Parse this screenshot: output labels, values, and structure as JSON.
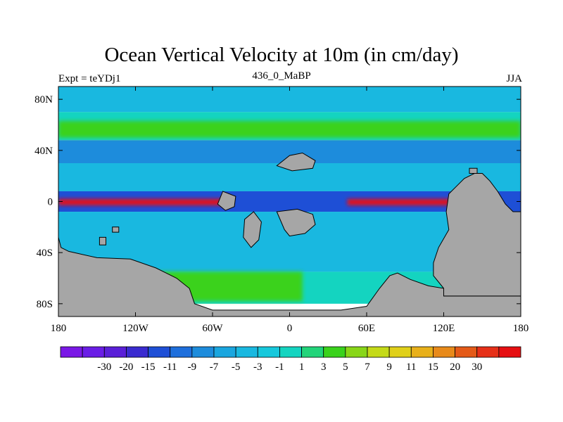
{
  "header": {
    "title": "Ocean Vertical Velocity at 10m (in cm/day)",
    "left_label": "Expt = teYDj1",
    "center_label": "436_0_MaBP",
    "right_label": "JJA"
  },
  "chart_data": {
    "type": "heatmap",
    "title": "Ocean Vertical Velocity at 10m (in cm/day)",
    "xlabel": "",
    "ylabel": "",
    "xlim": [
      -180,
      180
    ],
    "ylim": [
      -90,
      90
    ],
    "x_ticks": [
      {
        "value": -180,
        "label": "180"
      },
      {
        "value": -120,
        "label": "120W"
      },
      {
        "value": -60,
        "label": "60W"
      },
      {
        "value": 0,
        "label": "0"
      },
      {
        "value": 60,
        "label": "60E"
      },
      {
        "value": 120,
        "label": "120E"
      },
      {
        "value": 180,
        "label": "180"
      }
    ],
    "y_ticks": [
      {
        "value": 80,
        "label": "80N"
      },
      {
        "value": 40,
        "label": "40N"
      },
      {
        "value": 0,
        "label": "0"
      },
      {
        "value": -40,
        "label": "40S"
      },
      {
        "value": -80,
        "label": "80S"
      }
    ],
    "land_color": "#a6a6a6",
    "colorbar": {
      "colors": [
        "#7a18e6",
        "#6a1de6",
        "#5a1fd8",
        "#3a2bd0",
        "#1e4fd6",
        "#1e6fdc",
        "#1d8cdc",
        "#1aa6df",
        "#19b8e0",
        "#16c8dc",
        "#14d4c0",
        "#22d47a",
        "#3ad21c",
        "#88d618",
        "#c4da18",
        "#e0d019",
        "#e8b01a",
        "#e88a1a",
        "#e45a18",
        "#e63018",
        "#e60f12"
      ],
      "labels": [
        "-30",
        "-20",
        "-15",
        "-11",
        "-9",
        "-7",
        "-5",
        "-3",
        "-1",
        "1",
        "3",
        "5",
        "7",
        "9",
        "11",
        "15",
        "20",
        "30"
      ]
    },
    "background_field": [
      {
        "lat_range": [
          90,
          70
        ],
        "color": "#19b8e0"
      },
      {
        "lat_range": [
          70,
          48
        ],
        "color": "#14d4c0"
      },
      {
        "lat_range": [
          48,
          30
        ],
        "color": "#1d8cdc"
      },
      {
        "lat_range": [
          30,
          8
        ],
        "color": "#19b8e0"
      },
      {
        "lat_range": [
          8,
          -8
        ],
        "color": "#1e4fd6"
      },
      {
        "lat_range": [
          -8,
          -55
        ],
        "color": "#19b8e0"
      },
      {
        "lat_range": [
          -55,
          -80
        ],
        "color": "#14d4c0"
      }
    ],
    "field_features": [
      {
        "name": "northern-green-band",
        "lon_range": [
          -180,
          180
        ],
        "lat_range": [
          63,
          50
        ],
        "color": "#3ad21c"
      },
      {
        "name": "equatorial-pacific-upwelling",
        "lon_range": [
          -180,
          -50
        ],
        "lat_range": [
          2,
          -3
        ],
        "color": "#e60f12"
      },
      {
        "name": "equatorial-indo-upwelling",
        "lon_range": [
          45,
          125
        ],
        "lat_range": [
          2,
          -3
        ],
        "color": "#e60f12"
      },
      {
        "name": "southern-green-zone",
        "lon_range": [
          -120,
          10
        ],
        "lat_range": [
          -55,
          -78
        ],
        "color": "#3ad21c"
      }
    ],
    "continents": [
      {
        "name": "south-polar-landmass",
        "points": [
          [
            -180,
            -28
          ],
          [
            -178,
            -36
          ],
          [
            -172,
            -39
          ],
          [
            -150,
            -44
          ],
          [
            -124,
            -45
          ],
          [
            -104,
            -52
          ],
          [
            -88,
            -60
          ],
          [
            -78,
            -68
          ],
          [
            -74,
            -80
          ],
          [
            -60,
            -85
          ],
          [
            40,
            -85
          ],
          [
            60,
            -82
          ],
          [
            70,
            -68
          ],
          [
            78,
            -58
          ],
          [
            84,
            -56
          ],
          [
            94,
            -61
          ],
          [
            108,
            -66
          ],
          [
            120,
            -68
          ],
          [
            120,
            -74
          ],
          [
            180,
            -74
          ],
          [
            180,
            -90
          ],
          [
            -180,
            -90
          ]
        ]
      },
      {
        "name": "eastern-landmass",
        "points": [
          [
            120,
            -68
          ],
          [
            112,
            -58
          ],
          [
            112,
            -48
          ],
          [
            116,
            -36
          ],
          [
            124,
            -22
          ],
          [
            122,
            -8
          ],
          [
            124,
            6
          ],
          [
            130,
            12
          ],
          [
            136,
            18
          ],
          [
            144,
            22
          ],
          [
            150,
            22
          ],
          [
            156,
            16
          ],
          [
            162,
            8
          ],
          [
            168,
            -2
          ],
          [
            174,
            -8
          ],
          [
            180,
            -8
          ],
          [
            180,
            -74
          ],
          [
            120,
            -74
          ]
        ]
      },
      {
        "name": "central-island-a",
        "points": [
          [
            -35,
            -14
          ],
          [
            -36,
            -28
          ],
          [
            -30,
            -36
          ],
          [
            -24,
            -30
          ],
          [
            -22,
            -16
          ],
          [
            -28,
            -8
          ]
        ]
      },
      {
        "name": "central-island-b",
        "points": [
          [
            -10,
            -8
          ],
          [
            -4,
            -22
          ],
          [
            0,
            -27
          ],
          [
            12,
            -25
          ],
          [
            20,
            -18
          ],
          [
            18,
            -10
          ],
          [
            6,
            -6
          ]
        ]
      },
      {
        "name": "northern-island",
        "points": [
          [
            -10,
            28
          ],
          [
            0,
            36
          ],
          [
            10,
            38
          ],
          [
            20,
            32
          ],
          [
            18,
            26
          ],
          [
            2,
            24
          ]
        ]
      },
      {
        "name": "equatorial-blob",
        "points": [
          [
            -52,
            8
          ],
          [
            -56,
            -2
          ],
          [
            -50,
            -7
          ],
          [
            -43,
            -4
          ],
          [
            -42,
            4
          ]
        ]
      },
      {
        "name": "small-island-nw",
        "points": [
          [
            140,
            26
          ],
          [
            146,
            26
          ],
          [
            146,
            22
          ],
          [
            140,
            22
          ]
        ]
      },
      {
        "name": "small-island-sw",
        "points": [
          [
            -148,
            -28
          ],
          [
            -143,
            -28
          ],
          [
            -143,
            -34
          ],
          [
            -148,
            -34
          ]
        ]
      },
      {
        "name": "small-island-sw2",
        "points": [
          [
            -138,
            -20
          ],
          [
            -133,
            -20
          ],
          [
            -133,
            -24
          ],
          [
            -138,
            -24
          ]
        ]
      }
    ]
  }
}
